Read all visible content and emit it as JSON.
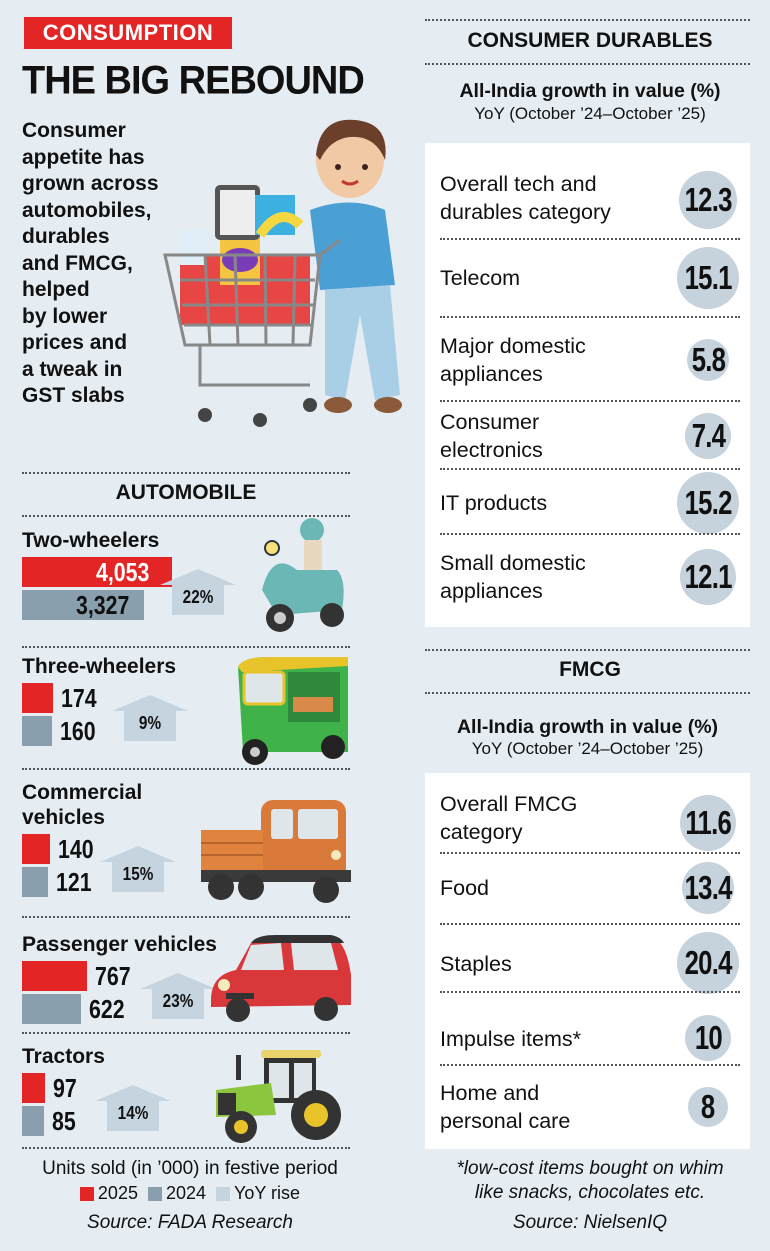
{
  "header": {
    "tag": "CONSUMPTION",
    "headline": "THE BIG REBOUND",
    "intro_lines": [
      "Consumer",
      "appetite has",
      "grown across",
      "automobiles,",
      "durables",
      "and FMCG,",
      "helped",
      "by lower",
      "prices and",
      "a tweak in",
      "GST slabs"
    ]
  },
  "colors": {
    "y2025": "#e32526",
    "y2024": "#8a9fad",
    "yoy": "#c6d4e0",
    "circle": "#c6d2dc",
    "background": "#e5edf3"
  },
  "automobile": {
    "title": "AUTOMOBILE",
    "footnote": "Units sold (in ’000) in festive period",
    "legend": {
      "y2025": "2025",
      "y2024": "2024",
      "yoy": "YoY rise"
    },
    "source": "Source: FADA Research"
  },
  "chart_data": {
    "type": "bar",
    "title": "AUTOMOBILE",
    "ylabel": "Units sold (in ’000) in festive period",
    "categories": [
      "Two-wheelers",
      "Three-wheelers",
      "Commercial vehicles",
      "Passenger vehicles",
      "Tractors"
    ],
    "category_lines": [
      [
        "Two-wheelers"
      ],
      [
        "Three-wheelers"
      ],
      [
        "Commercial",
        "vehicles"
      ],
      [
        "Passenger vehicles"
      ],
      [
        "Tractors"
      ]
    ],
    "series": [
      {
        "name": "2025",
        "values": [
          4053,
          174,
          140,
          767,
          97
        ],
        "labels": [
          "4,053",
          "174",
          "140",
          "767",
          "97"
        ]
      },
      {
        "name": "2024",
        "values": [
          3327,
          160,
          121,
          622,
          85
        ],
        "labels": [
          "3,327",
          "160",
          "121",
          "622",
          "85"
        ]
      }
    ],
    "yoy_rise": [
      22,
      9,
      15,
      23,
      14
    ],
    "yoy_labels": [
      "22%",
      "9%",
      "15%",
      "23%",
      "14%"
    ]
  },
  "durables": {
    "title": "CONSUMER DURABLES",
    "sub1": "All-India growth in value (%)",
    "sub2": "YoY (October ’24–October ’25)",
    "rows": [
      {
        "label": [
          "Overall tech and",
          "durables category"
        ],
        "value": "12.3"
      },
      {
        "label": [
          "Telecom"
        ],
        "value": "15.1"
      },
      {
        "label": [
          "Major domestic",
          "appliances"
        ],
        "value": "5.8"
      },
      {
        "label": [
          "Consumer",
          "electronics"
        ],
        "value": "7.4"
      },
      {
        "label": [
          "IT products"
        ],
        "value": "15.2"
      },
      {
        "label": [
          "Small domestic",
          "appliances"
        ],
        "value": "12.1"
      }
    ]
  },
  "fmcg": {
    "title": "FMCG",
    "sub1": "All-India growth in value (%)",
    "sub2": "YoY (October ’24–October ’25)",
    "rows": [
      {
        "label": [
          "Overall FMCG",
          "category"
        ],
        "value": "11.6"
      },
      {
        "label": [
          "Food"
        ],
        "value": "13.4"
      },
      {
        "label": [
          "Staples"
        ],
        "value": "20.4"
      },
      {
        "label": [
          "Impulse items*"
        ],
        "value": "10"
      },
      {
        "label": [
          "Home and",
          "personal care"
        ],
        "value": "8"
      }
    ],
    "footnote": [
      "*low-cost items bought on whim",
      "like snacks, chocolates etc."
    ],
    "source": "Source: NielsenIQ"
  },
  "illustrations": {
    "shopper": "shopper-with-cart-illustration",
    "vehicles": [
      "scooter-icon",
      "auto-rickshaw-icon",
      "pickup-truck-icon",
      "car-icon",
      "tractor-icon"
    ]
  }
}
